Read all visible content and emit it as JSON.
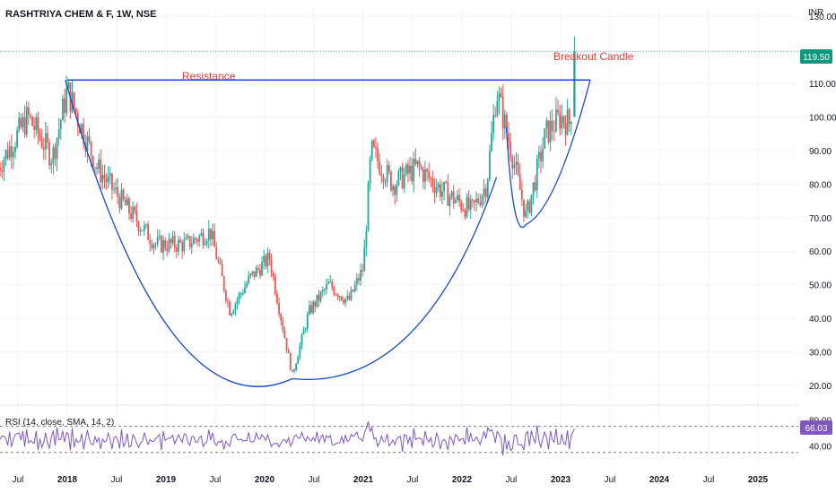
{
  "header": {
    "symbol_title": "RASHTRIYA CHEM & F, 1W, NSE",
    "currency": "INR"
  },
  "chart_data": {
    "type": "candlestick",
    "price_axis": {
      "ticks": [
        "130.00",
        "110.00",
        "100.00",
        "90.00",
        "80.00",
        "70.00",
        "60.00",
        "50.00",
        "40.00",
        "30.00",
        "20.00"
      ],
      "tick_values": [
        130,
        110,
        100,
        90,
        80,
        70,
        60,
        50,
        40,
        30,
        20
      ],
      "range": [
        14,
        134
      ]
    },
    "last_price": {
      "value": 119.5,
      "label": "119.50",
      "color": "#089981"
    },
    "time_axis": {
      "labels": [
        "Jul",
        "2018",
        "Jul",
        "2019",
        "Jul",
        "2020",
        "Jul",
        "2021",
        "Jul",
        "2022",
        "Jul",
        "2023",
        "Jul",
        "2024",
        "Jul",
        "2025"
      ],
      "start_year": 2017.25,
      "end_year": 2025.55
    },
    "annotations": {
      "resistance_label": "Resistance",
      "resistance_level": 111,
      "breakout_label": "Breakout Candle",
      "line_color": "#1848cc",
      "text_color": "#e53935",
      "cup_bottom": {
        "year": 2020.28,
        "price": 22
      },
      "handle_bottom": {
        "year": 2022.65,
        "price": 68
      }
    },
    "key_prices": [
      {
        "year": 2017.3,
        "price": 85
      },
      {
        "year": 2017.6,
        "price": 100
      },
      {
        "year": 2017.85,
        "price": 88
      },
      {
        "year": 2018.0,
        "price": 108
      },
      {
        "year": 2018.3,
        "price": 85
      },
      {
        "year": 2018.6,
        "price": 73
      },
      {
        "year": 2018.9,
        "price": 62
      },
      {
        "year": 2019.2,
        "price": 62
      },
      {
        "year": 2019.45,
        "price": 66
      },
      {
        "year": 2019.65,
        "price": 42
      },
      {
        "year": 2019.85,
        "price": 52
      },
      {
        "year": 2020.05,
        "price": 58
      },
      {
        "year": 2020.2,
        "price": 35
      },
      {
        "year": 2020.28,
        "price": 23
      },
      {
        "year": 2020.45,
        "price": 42
      },
      {
        "year": 2020.65,
        "price": 50
      },
      {
        "year": 2020.85,
        "price": 45
      },
      {
        "year": 2021.0,
        "price": 55
      },
      {
        "year": 2021.08,
        "price": 90
      },
      {
        "year": 2021.3,
        "price": 80
      },
      {
        "year": 2021.55,
        "price": 85
      },
      {
        "year": 2021.8,
        "price": 78
      },
      {
        "year": 2022.1,
        "price": 72
      },
      {
        "year": 2022.25,
        "price": 80
      },
      {
        "year": 2022.35,
        "price": 108
      },
      {
        "year": 2022.5,
        "price": 90
      },
      {
        "year": 2022.65,
        "price": 70
      },
      {
        "year": 2022.85,
        "price": 95
      },
      {
        "year": 2023.0,
        "price": 100
      },
      {
        "year": 2023.1,
        "price": 98
      },
      {
        "year": 2023.14,
        "price": 119.5
      }
    ],
    "rsi": {
      "label": "RSI (14, close, SMA, 14, 2)",
      "value_label": "66.03",
      "value": 66.03,
      "ticks": [
        "80.00",
        "40.00"
      ],
      "tick_values": [
        80,
        40
      ],
      "upper_band": 70,
      "lower_band": 30,
      "color": "#7e57c2"
    },
    "colors": {
      "up": "#26a69a",
      "down": "#ef5350",
      "grid": "#f0f3fa",
      "axis_text": "#131722"
    }
  }
}
